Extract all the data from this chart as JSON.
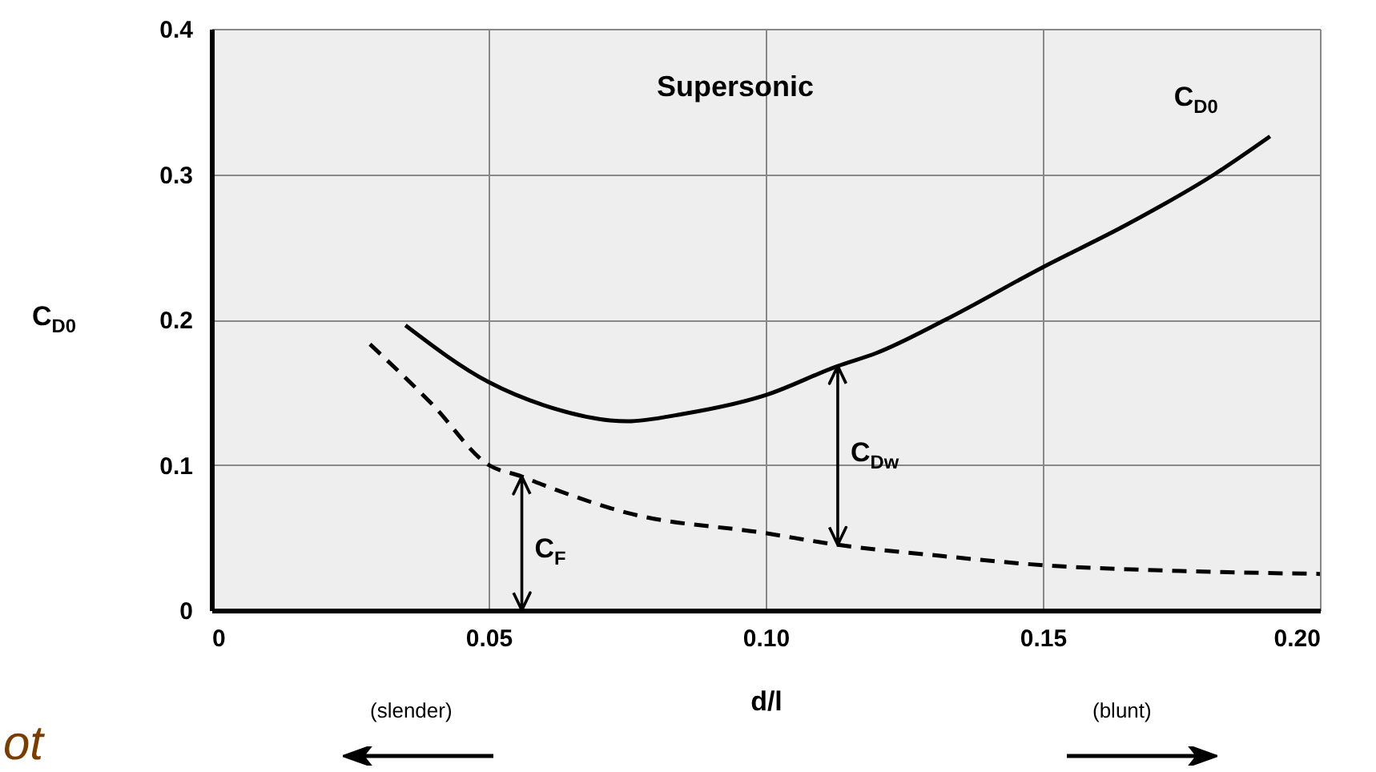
{
  "chart_data": {
    "type": "line",
    "xlabel": "d/l",
    "ylabel": "C$_{D0}$",
    "xlim": [
      0,
      0.2
    ],
    "ylim": [
      0,
      0.4
    ],
    "xticks": [
      0,
      0.05,
      {
        "value": 0.1,
        "label": "0.10"
      },
      0.15,
      {
        "value": 0.2,
        "label": "0.20"
      }
    ],
    "yticks": [
      0,
      0.1,
      0.2,
      0.3,
      0.4
    ],
    "grid": true,
    "series": [
      {
        "name": "C$_{D0}$",
        "color": "#000000",
        "line_style": "solid",
        "x": [
          0.035,
          0.05,
          0.06,
          0.075,
          0.085,
          0.1,
          0.113,
          0.12,
          0.1325,
          0.15,
          0.165,
          0.181,
          0.191
        ],
        "values": [
          0.196,
          0.157,
          0.141,
          0.13,
          0.135,
          0.148,
          0.168,
          0.177,
          0.2,
          0.236,
          0.265,
          0.3,
          0.326
        ]
      },
      {
        "color": "#000000",
        "line_style": "dashed",
        "x": [
          0.0286,
          0.04,
          0.05,
          0.056,
          0.06,
          0.075,
          0.1,
          0.113,
          0.13,
          0.15,
          0.175,
          0.2
        ],
        "values": [
          0.183,
          0.141,
          0.1,
          0.092,
          0.086,
          0.067,
          0.053,
          0.045,
          0.038,
          0.031,
          0.027,
          0.025
        ]
      }
    ],
    "annotations": [
      "Supersonic",
      "C$_{Dw}$",
      "C$_{F}$",
      "(slender)",
      "(blunt)",
      "ot"
    ]
  }
}
